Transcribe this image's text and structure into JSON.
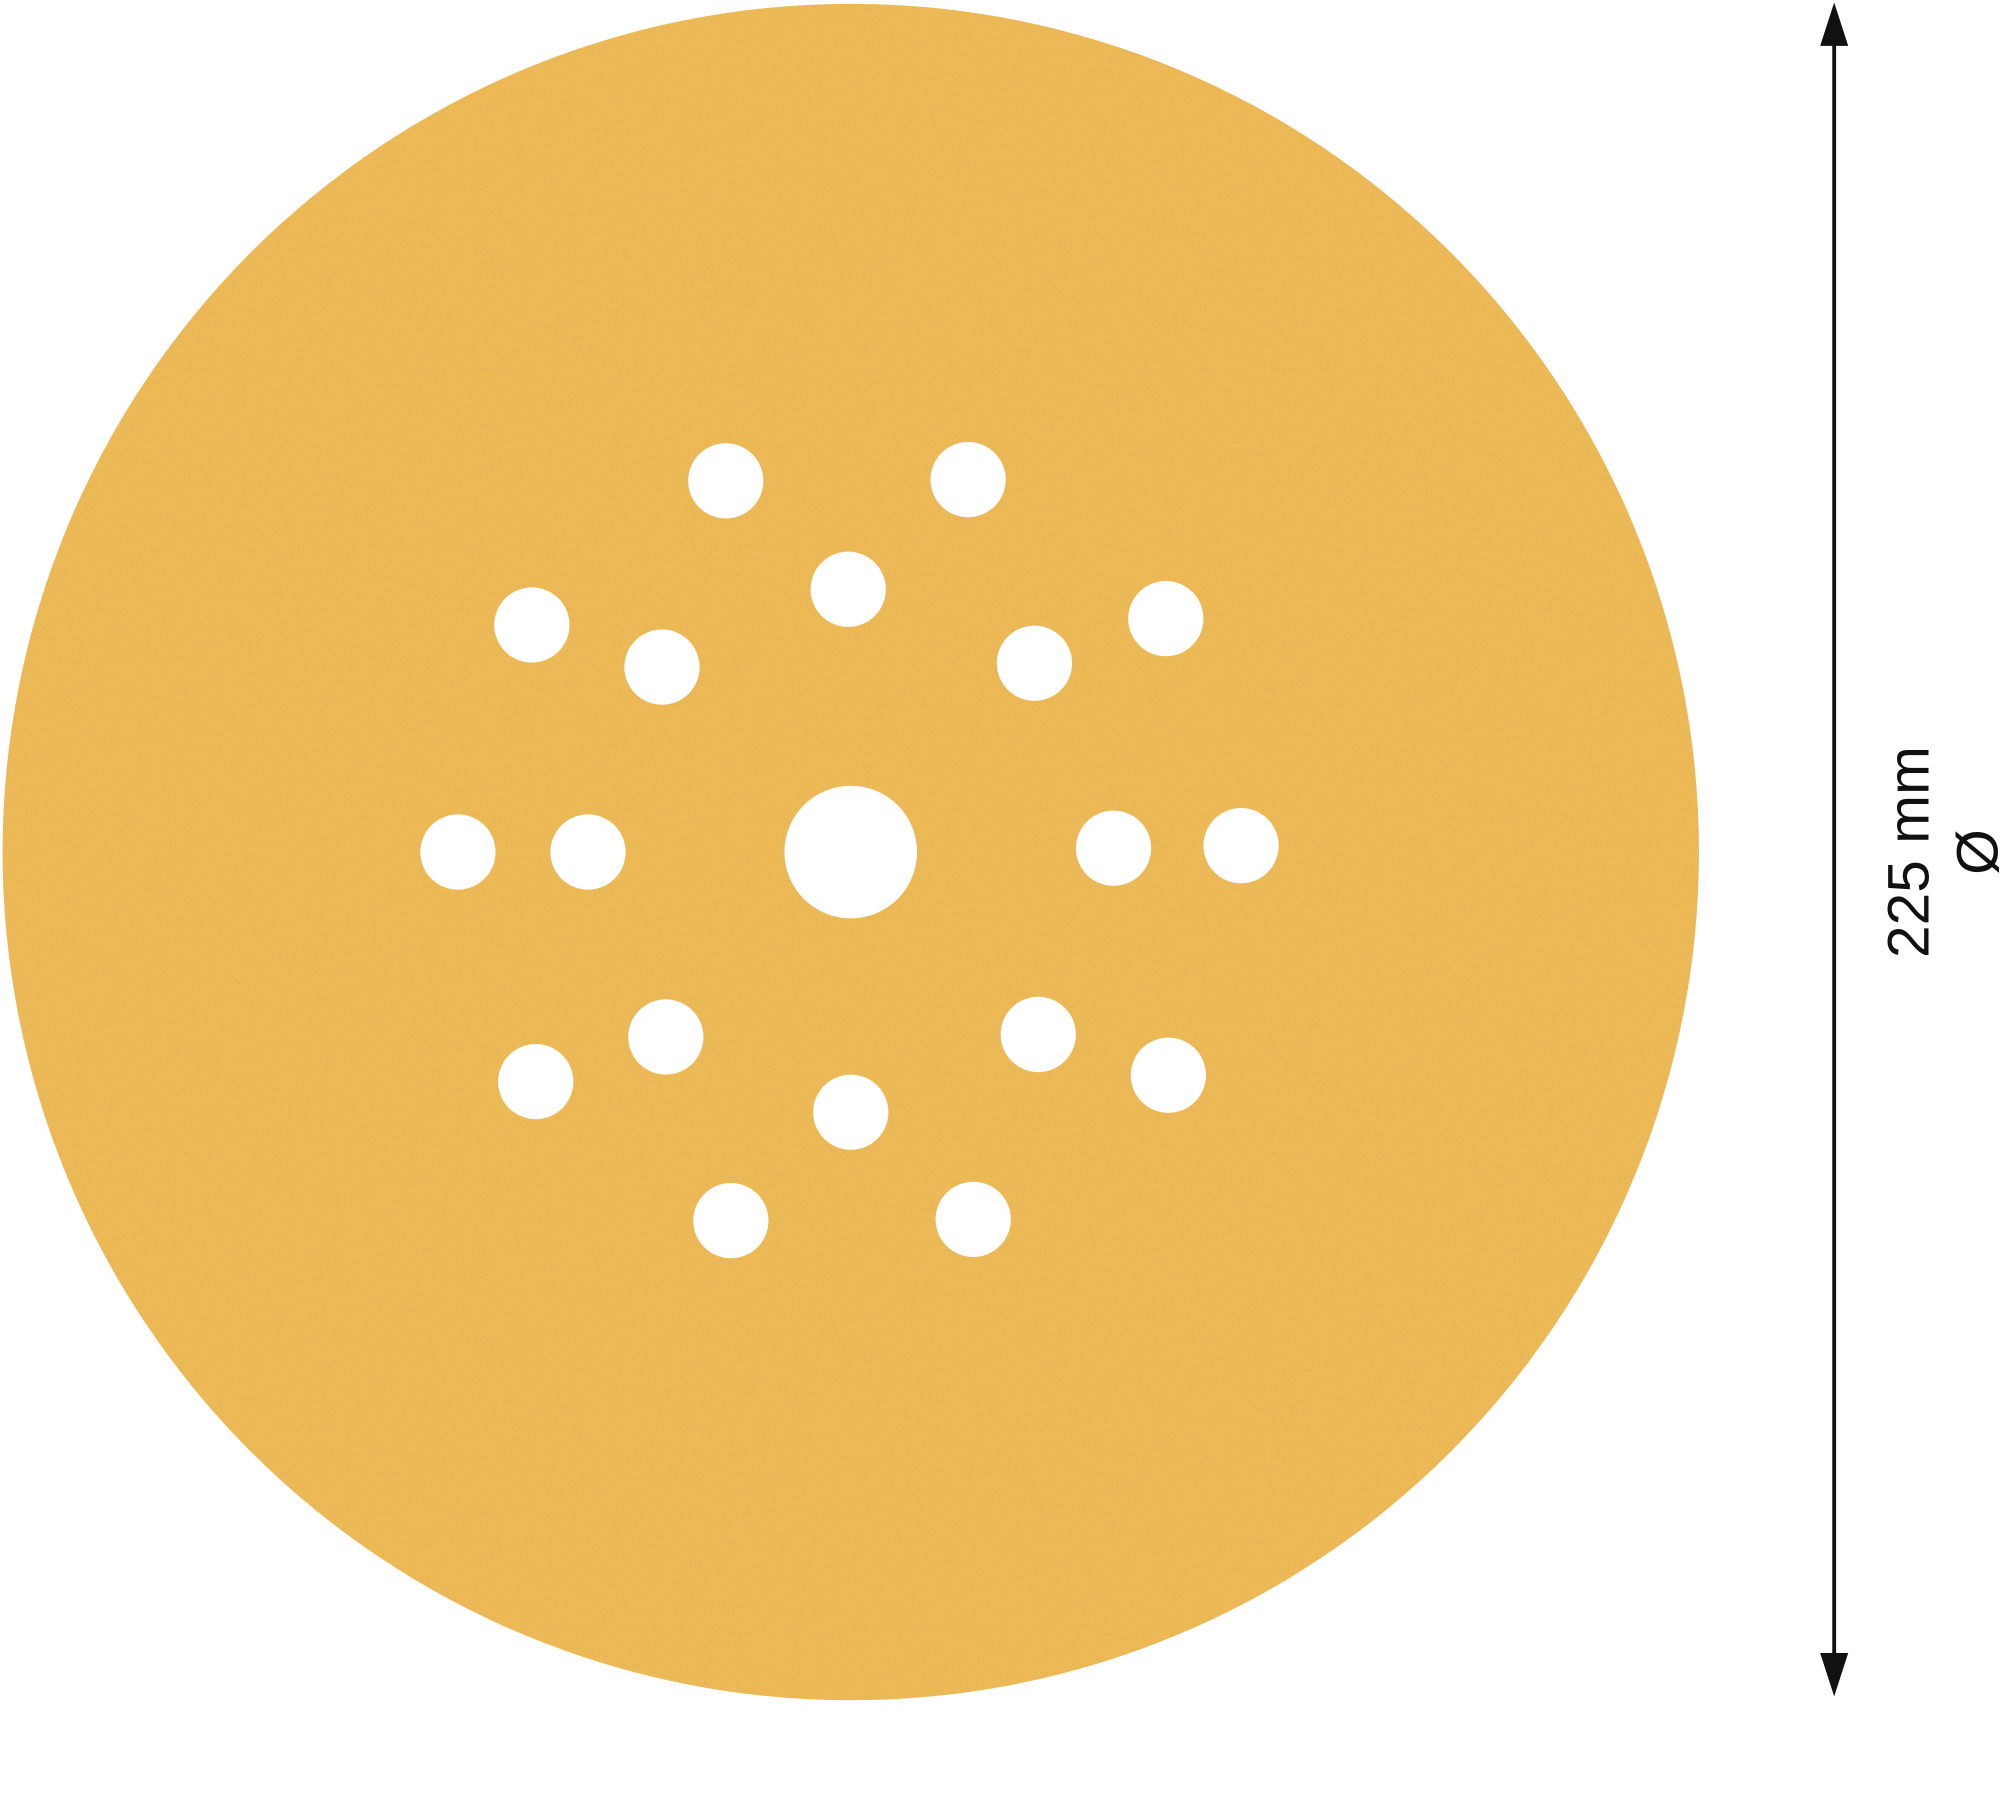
{
  "dimension": {
    "value_label": "225 mm",
    "symbol": "Ø"
  },
  "disc": {
    "color": "#EDB954",
    "grain_color": "#B8894A",
    "hole_count": 19
  },
  "colors": {
    "background": "#FFFFFF",
    "arrow": "#111111"
  }
}
